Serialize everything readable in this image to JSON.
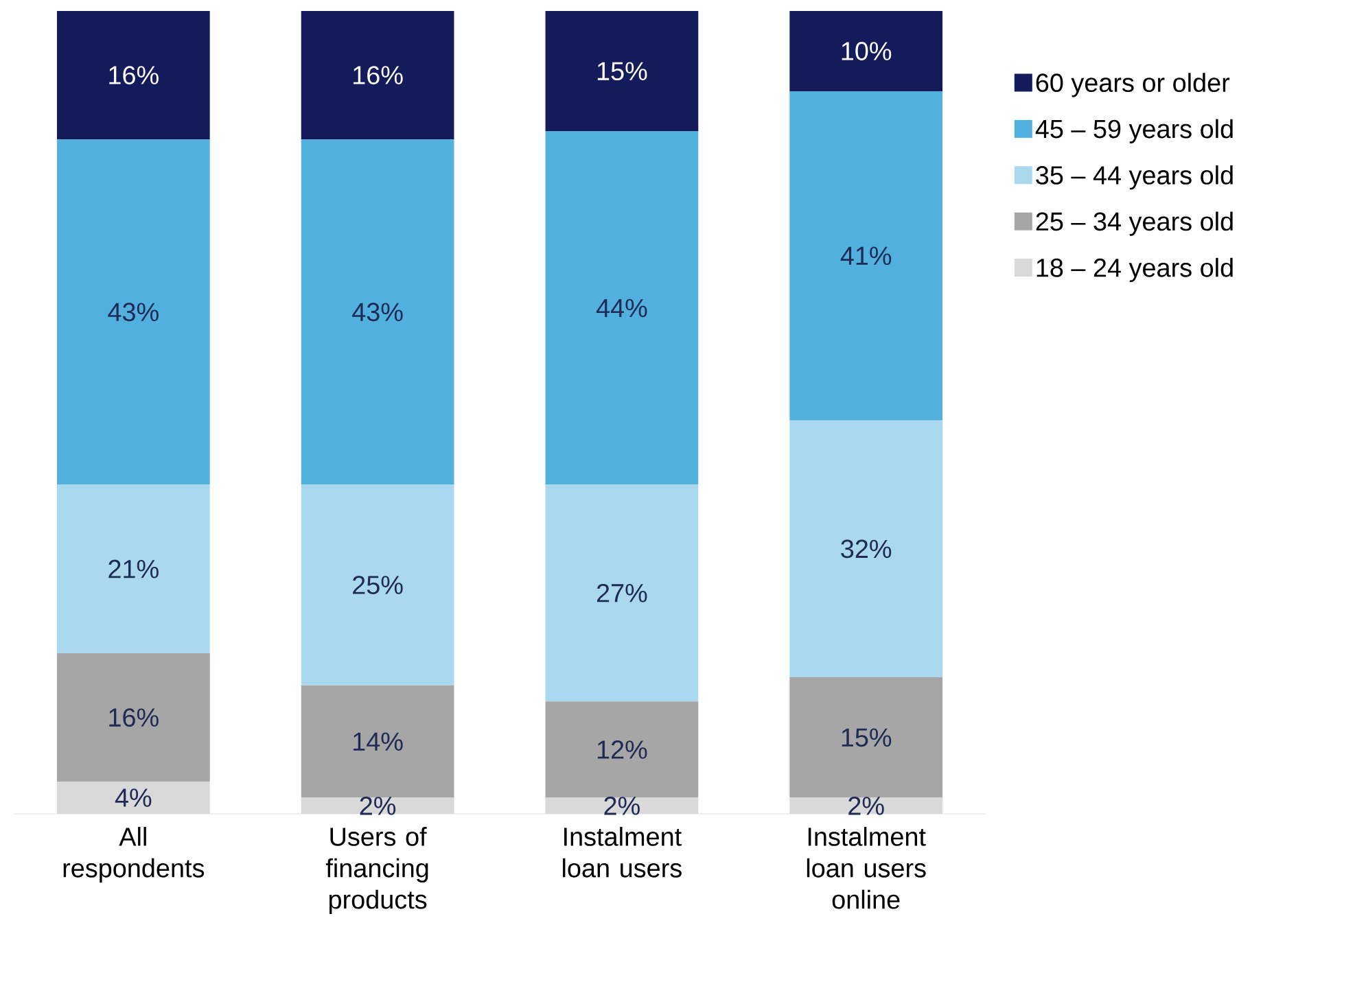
{
  "chart_data": {
    "type": "bar",
    "stacked": true,
    "legend": "right",
    "categories": [
      "All respondents",
      "Users of financing products",
      "Instalment loan users",
      "Instalment loan users online"
    ],
    "series": [
      {
        "name": "18 – 24 years old",
        "color": "#d9d9d9",
        "values": [
          4,
          2,
          2,
          2
        ],
        "value_labels": [
          "4%",
          "2%",
          "2%",
          "2%"
        ]
      },
      {
        "name": "25 – 34 years old",
        "color": "#a6a6a6",
        "values": [
          16,
          14,
          12,
          15
        ],
        "value_labels": [
          "16%",
          "14%",
          "12%",
          "15%"
        ]
      },
      {
        "name": "35 – 44 years old",
        "color": "#a9d8ef",
        "values": [
          21,
          25,
          27,
          32
        ],
        "value_labels": [
          "21%",
          "25%",
          "27%",
          "32%"
        ]
      },
      {
        "name": "45 – 59 years old",
        "color": "#52b0de",
        "values": [
          43,
          43,
          44,
          41
        ],
        "value_labels": [
          "43%",
          "43%",
          "44%",
          "41%"
        ]
      },
      {
        "name": "60 years or older",
        "color": "#141b5a",
        "values": [
          16,
          16,
          15,
          10
        ],
        "value_labels": [
          "16%",
          "16%",
          "15%",
          "10%"
        ]
      }
    ]
  }
}
